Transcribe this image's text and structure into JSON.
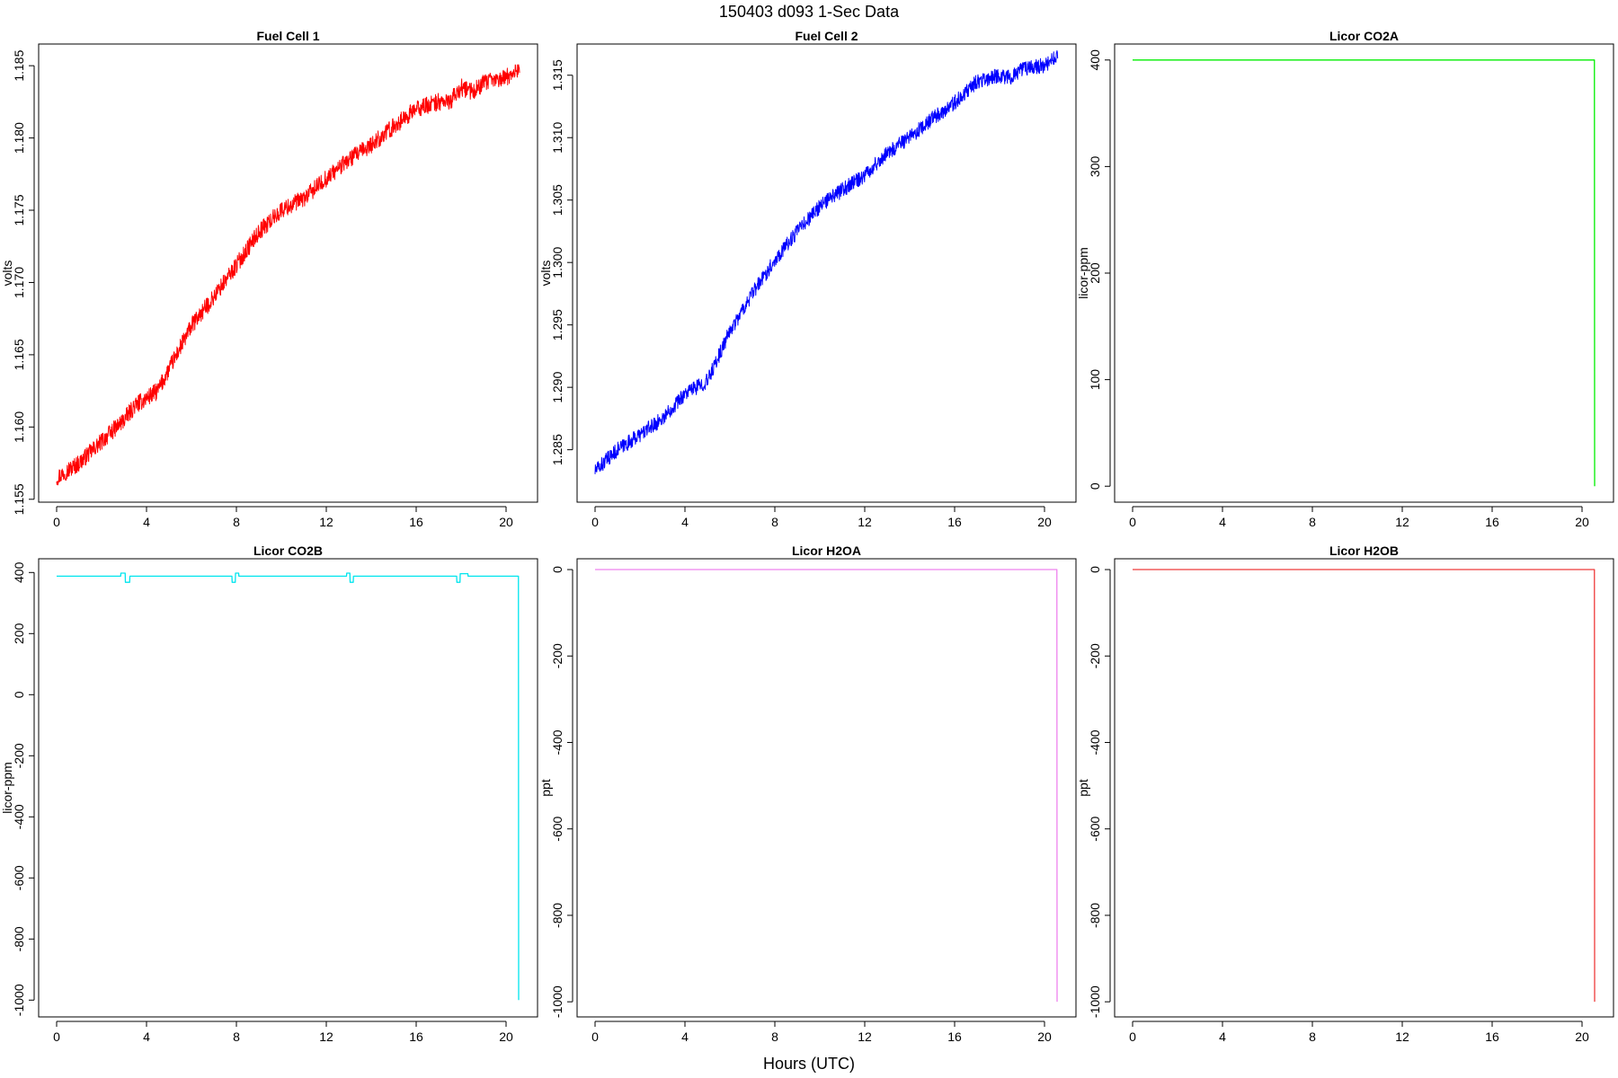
{
  "figure": {
    "title": "150403   d093   1-Sec Data",
    "xlabel": "Hours (UTC)"
  },
  "chart_data": [
    {
      "type": "line",
      "title": "Fuel Cell 1",
      "ylabel": "volts",
      "color": "#ff0000",
      "xlim": [
        -0.8,
        21.4
      ],
      "ylim": [
        1.1548,
        1.1865
      ],
      "xticks": [
        0,
        4,
        8,
        12,
        16,
        20
      ],
      "yticks": [
        1.155,
        1.16,
        1.165,
        1.17,
        1.175,
        1.18,
        1.185
      ],
      "ytick_labels": [
        "1.155",
        "1.160",
        "1.165",
        "1.170",
        "1.175",
        "1.180",
        "1.185"
      ],
      "noise": 0.0006,
      "x": [
        0,
        1,
        2,
        3,
        3.5,
        4,
        4.5,
        5,
        6,
        7,
        8,
        9,
        10,
        11,
        12,
        13,
        14,
        15,
        16,
        17,
        17.5,
        18,
        18.5,
        19,
        20,
        20.6
      ],
      "y": [
        1.1565,
        1.1575,
        1.159,
        1.1605,
        1.1615,
        1.162,
        1.1625,
        1.164,
        1.167,
        1.169,
        1.1712,
        1.1735,
        1.175,
        1.1758,
        1.1772,
        1.1785,
        1.1795,
        1.1808,
        1.182,
        1.1825,
        1.1825,
        1.1835,
        1.1832,
        1.1838,
        1.1842,
        1.1848
      ]
    },
    {
      "type": "line",
      "title": "Fuel Cell 2",
      "ylabel": "volts",
      "color": "#0000ff",
      "xlim": [
        -0.8,
        21.4
      ],
      "ylim": [
        1.2808,
        1.3175
      ],
      "xticks": [
        0,
        4,
        8,
        12,
        16,
        20
      ],
      "yticks": [
        1.285,
        1.29,
        1.295,
        1.3,
        1.305,
        1.31,
        1.315
      ],
      "ytick_labels": [
        "1.285",
        "1.290",
        "1.295",
        "1.300",
        "1.305",
        "1.310",
        "1.315"
      ],
      "noise": 0.0006,
      "x": [
        0,
        1,
        2,
        3,
        4,
        5,
        6,
        7,
        8,
        9,
        10,
        11,
        12,
        13,
        14,
        15,
        16,
        17,
        18,
        18.5,
        19,
        20,
        20.6
      ],
      "y": [
        1.2833,
        1.285,
        1.2862,
        1.2875,
        1.2895,
        1.2905,
        1.2945,
        1.2975,
        1.3002,
        1.3025,
        1.3045,
        1.3058,
        1.307,
        1.3088,
        1.31,
        1.3115,
        1.3128,
        1.3145,
        1.315,
        1.3148,
        1.3155,
        1.3158,
        1.3165
      ]
    },
    {
      "type": "line",
      "title": "Licor CO2A",
      "ylabel": "licor-ppm",
      "color": "#00ee00",
      "xlim": [
        -0.8,
        21.4
      ],
      "ylim": [
        -15,
        415
      ],
      "xticks": [
        0,
        4,
        8,
        12,
        16,
        20
      ],
      "yticks": [
        0,
        100,
        200,
        300,
        400
      ],
      "ytick_labels": [
        "0",
        "100",
        "200",
        "300",
        "400"
      ],
      "noise": 0,
      "x": [
        0,
        20.55,
        20.56
      ],
      "y": [
        400,
        400,
        0
      ]
    },
    {
      "type": "line",
      "title": "Licor CO2B",
      "ylabel": "licor-ppm",
      "color": "#00e5ee",
      "xlim": [
        -0.8,
        21.4
      ],
      "ylim": [
        -1055,
        445
      ],
      "xticks": [
        0,
        4,
        8,
        12,
        16,
        20
      ],
      "yticks": [
        -1000,
        -800,
        -600,
        -400,
        -200,
        0,
        200,
        400
      ],
      "ytick_labels": [
        "-1000",
        "-800",
        "-600",
        "-400",
        "-200",
        "0",
        "200",
        "400"
      ],
      "noise": 0,
      "x": [
        0,
        2.85,
        2.86,
        3.05,
        3.06,
        3.25,
        3.26,
        7.8,
        7.81,
        7.95,
        7.96,
        8.1,
        8.11,
        12.9,
        12.91,
        13.05,
        13.06,
        13.2,
        13.21,
        17.8,
        17.81,
        17.95,
        17.96,
        18.3,
        18.31,
        20.55,
        20.56
      ],
      "y": [
        388,
        388,
        398,
        398,
        368,
        368,
        388,
        388,
        368,
        368,
        398,
        398,
        388,
        388,
        398,
        398,
        368,
        368,
        388,
        388,
        368,
        368,
        396,
        396,
        388,
        388,
        -1000
      ]
    },
    {
      "type": "line",
      "title": "Licor H2OA",
      "ylabel": "ppt",
      "color": "#ee82ee",
      "xlim": [
        -0.8,
        21.4
      ],
      "ylim": [
        -1035,
        25
      ],
      "xticks": [
        0,
        4,
        8,
        12,
        16,
        20
      ],
      "yticks": [
        -1000,
        -800,
        -600,
        -400,
        -200,
        0
      ],
      "ytick_labels": [
        "-1000",
        "-800",
        "-600",
        "-400",
        "-200",
        "0"
      ],
      "noise": 0,
      "x": [
        0,
        20.55,
        20.56
      ],
      "y": [
        0,
        0,
        -1000
      ]
    },
    {
      "type": "line",
      "title": "Licor H2OB",
      "ylabel": "ppt",
      "color": "#ee3b3b",
      "xlim": [
        -0.8,
        21.4
      ],
      "ylim": [
        -1035,
        25
      ],
      "xticks": [
        0,
        4,
        8,
        12,
        16,
        20
      ],
      "yticks": [
        -1000,
        -800,
        -600,
        -400,
        -200,
        0
      ],
      "ytick_labels": [
        "-1000",
        "-800",
        "-600",
        "-400",
        "-200",
        "0"
      ],
      "noise": 0,
      "x": [
        0,
        20.55,
        20.56
      ],
      "y": [
        0,
        0,
        -1000
      ]
    }
  ]
}
